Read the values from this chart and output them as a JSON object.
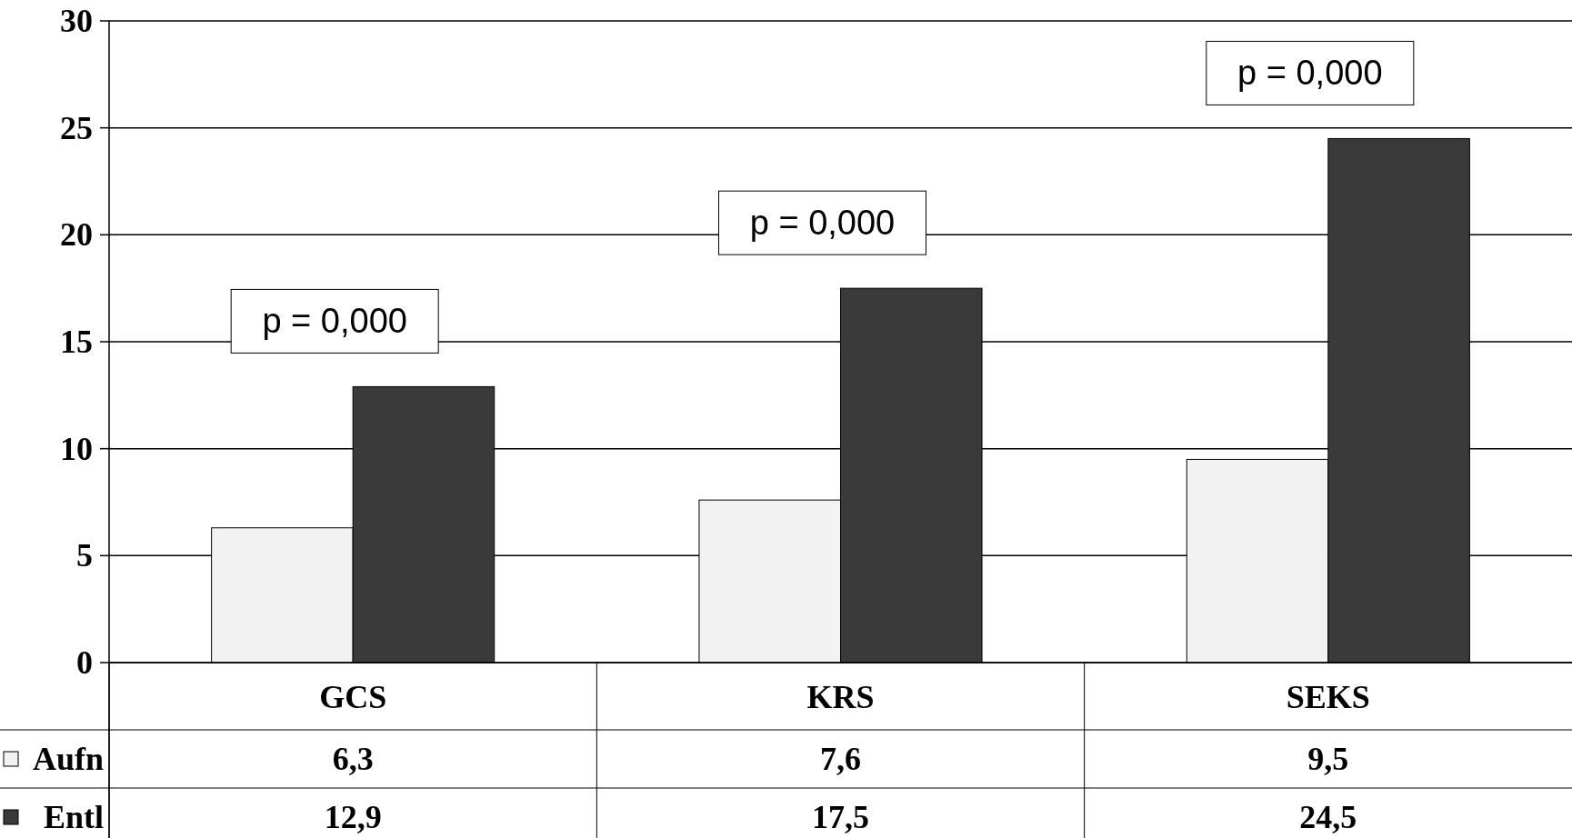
{
  "chart_data": {
    "type": "bar",
    "categories": [
      "GCS",
      "KRS",
      "SEKS"
    ],
    "series": [
      {
        "name": "Aufn",
        "color": "#f2f2f2",
        "values": [
          6.3,
          7.6,
          9.5
        ],
        "value_labels": [
          "6,3",
          "7,6",
          "9,5"
        ]
      },
      {
        "name": "Entl",
        "color": "#3a3a3a",
        "values": [
          12.9,
          17.5,
          24.5
        ],
        "value_labels": [
          "12,9",
          "17,5",
          "24,5"
        ]
      }
    ],
    "ylim": [
      0,
      30
    ],
    "yticks": [
      0,
      5,
      10,
      15,
      20,
      25,
      30
    ],
    "grid": "y",
    "legend": "left",
    "annotations": [
      "p = 0,000",
      "p = 0,000",
      "p = 0,000"
    ]
  }
}
